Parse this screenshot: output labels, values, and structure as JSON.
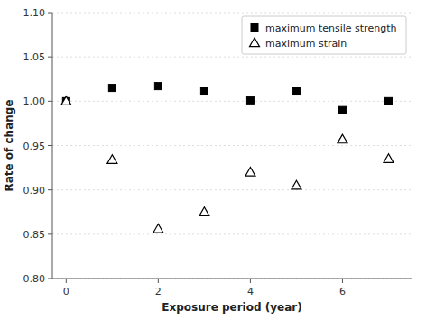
{
  "chart_data": {
    "type": "scatter",
    "x": [
      0,
      1,
      2,
      3,
      4,
      5,
      6,
      7
    ],
    "series": [
      {
        "name": "maximum tensile strength",
        "color": "#000000",
        "marker": "square",
        "values": [
          1.0,
          1.015,
          1.017,
          1.012,
          1.001,
          1.012,
          0.99,
          1.0
        ]
      },
      {
        "name": "maximum strain",
        "color": "#000000",
        "marker": "triangle-open",
        "values": [
          1.0,
          0.934,
          0.856,
          0.875,
          0.92,
          0.905,
          0.957,
          0.935
        ]
      }
    ],
    "xlabel": "Exposure period (year)",
    "ylabel": "Rate of change",
    "xlim": [
      -0.3,
      7.5
    ],
    "ylim": [
      0.8,
      1.1
    ],
    "xticks": [
      0,
      2,
      4,
      6
    ],
    "yticks": [
      {
        "value": 0.8,
        "label": "0.80"
      },
      0.85,
      {
        "value": 0.9,
        "label": "0.90"
      },
      0.95,
      {
        "value": 1.0,
        "label": "1.00"
      },
      1.05,
      {
        "value": 1.1,
        "label": "1.10"
      }
    ],
    "grid": true,
    "legend": "upper right"
  }
}
